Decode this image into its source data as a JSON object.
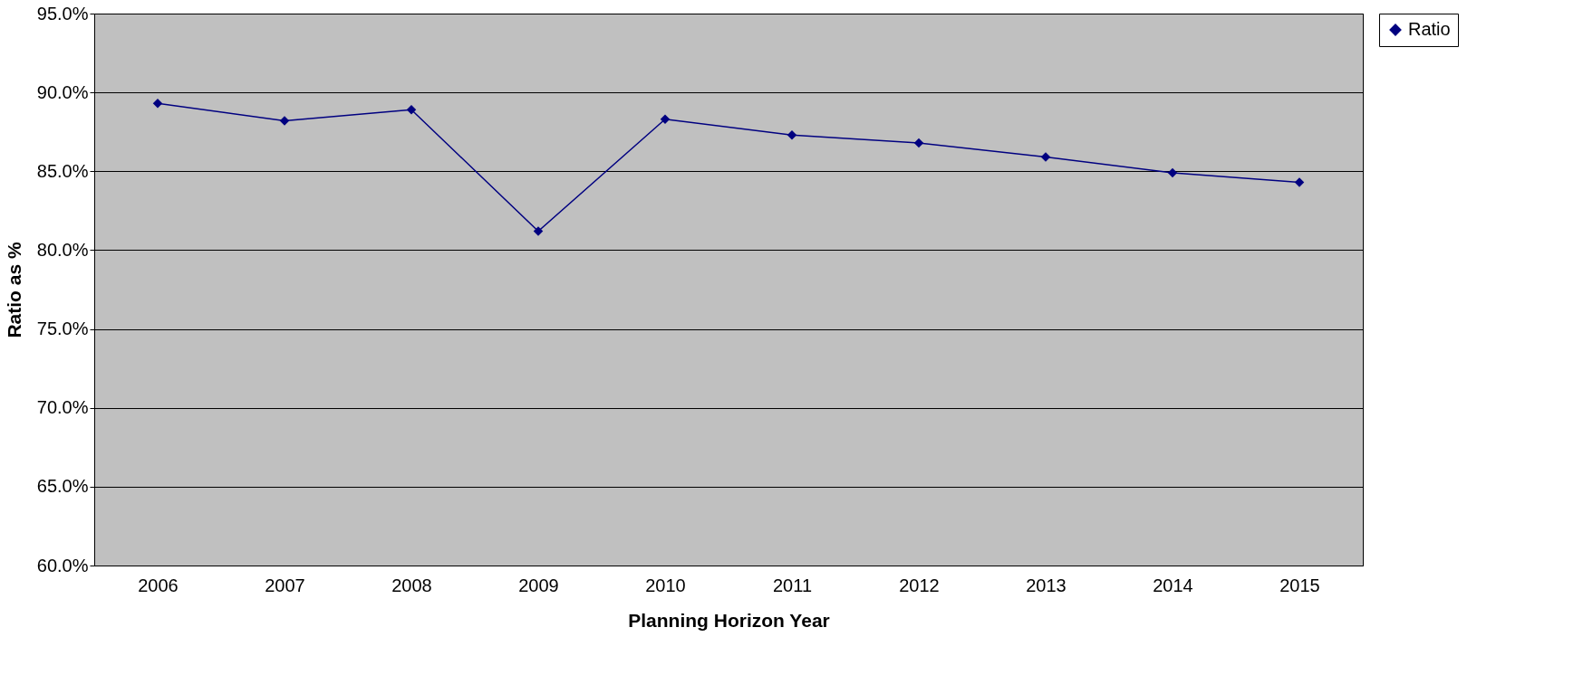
{
  "chart_data": {
    "type": "line",
    "xlabel": "Planning Horizon Year",
    "ylabel": "Ratio as %",
    "categories": [
      "2006",
      "2007",
      "2008",
      "2009",
      "2010",
      "2011",
      "2012",
      "2013",
      "2014",
      "2015"
    ],
    "series": [
      {
        "name": "Ratio",
        "color": "#000080",
        "values": [
          89.3,
          88.2,
          88.9,
          81.2,
          88.3,
          87.3,
          86.8,
          85.9,
          84.9,
          84.3
        ]
      }
    ],
    "ylim": [
      60,
      95
    ],
    "yticks": [
      {
        "value": 60,
        "label": "60.0%"
      },
      {
        "value": 65,
        "label": "65.0%"
      },
      {
        "value": 70,
        "label": "70.0%"
      },
      {
        "value": 75,
        "label": "75.0%"
      },
      {
        "value": 80,
        "label": "80.0%"
      },
      {
        "value": 85,
        "label": "85.0%"
      },
      {
        "value": 90,
        "label": "90.0%"
      },
      {
        "value": 95,
        "label": "95.0%"
      }
    ],
    "grid": "y",
    "legend": "right",
    "marker": "diamond",
    "line_style": "solid"
  }
}
